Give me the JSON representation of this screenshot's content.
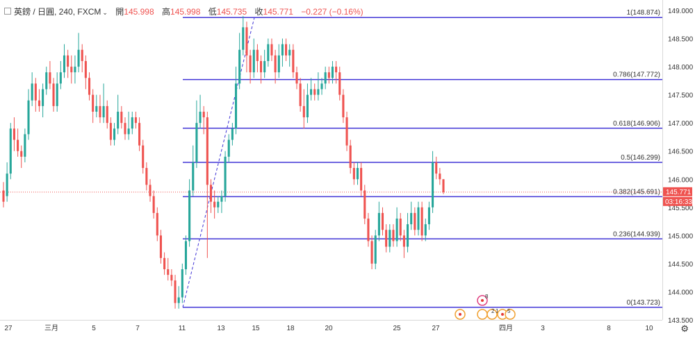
{
  "header": {
    "symbol": "英鎊 / 日圓, 240, FXCM",
    "open_label": "開",
    "open": "145.998",
    "high_label": "高",
    "high": "145.998",
    "low_label": "低",
    "low": "145.735",
    "close_label": "收",
    "close": "145.771",
    "change": "−0.227 (−0.16%)"
  },
  "price_tag": {
    "value": "145.771",
    "countdown": "03:16:33",
    "color": "#ef5350"
  },
  "colors": {
    "up": "#26a69a",
    "down": "#ef5350",
    "fib": "#3f33d6",
    "trend": "#3f33d6",
    "axis_text": "#333333"
  },
  "chart_data": {
    "type": "candlestick",
    "title": "",
    "xlabel": "",
    "ylabel": "",
    "ylim": [
      143.5,
      149.1
    ],
    "y_ticks": [
      "149.000",
      "148.500",
      "148.000",
      "147.500",
      "147.000",
      "146.500",
      "146.000",
      "145.500",
      "145.000",
      "144.500",
      "144.000",
      "143.500"
    ],
    "x_ticks": [
      "27",
      "三月",
      "5",
      "7",
      "11",
      "13",
      "15",
      "18",
      "20",
      "25",
      "27",
      "四月",
      "3",
      "8",
      "10"
    ],
    "grid": false,
    "candles": [
      [
        145.8,
        145.6,
        145.95,
        145.5
      ],
      [
        145.7,
        146.1,
        146.3,
        145.6
      ],
      [
        146.1,
        146.9,
        147.0,
        146.0
      ],
      [
        146.9,
        146.7,
        147.1,
        146.5
      ],
      [
        146.7,
        146.5,
        146.9,
        146.4
      ],
      [
        146.5,
        146.4,
        146.6,
        146.2
      ],
      [
        146.4,
        146.8,
        146.9,
        146.3
      ],
      [
        146.8,
        147.4,
        147.6,
        146.7
      ],
      [
        147.4,
        147.7,
        147.9,
        147.3
      ],
      [
        147.7,
        147.4,
        147.8,
        147.2
      ],
      [
        147.4,
        147.3,
        147.6,
        147.2
      ],
      [
        147.3,
        147.6,
        147.7,
        147.1
      ],
      [
        147.6,
        147.9,
        148.0,
        147.5
      ],
      [
        147.9,
        147.7,
        148.1,
        147.6
      ],
      [
        147.7,
        147.3,
        147.8,
        147.2
      ],
      [
        147.3,
        147.7,
        147.9,
        147.2
      ],
      [
        147.7,
        147.9,
        148.1,
        147.6
      ],
      [
        147.9,
        148.2,
        148.4,
        147.8
      ],
      [
        148.2,
        148.0,
        148.3,
        147.8
      ],
      [
        148.0,
        147.9,
        148.2,
        147.7
      ],
      [
        147.9,
        148.0,
        148.2,
        147.7
      ],
      [
        148.0,
        148.3,
        148.6,
        147.9
      ],
      [
        148.3,
        148.1,
        148.4,
        147.9
      ],
      [
        148.1,
        147.8,
        148.2,
        147.6
      ],
      [
        147.8,
        147.5,
        147.9,
        147.4
      ],
      [
        147.5,
        147.2,
        147.6,
        147.0
      ],
      [
        147.2,
        147.3,
        147.5,
        147.1
      ],
      [
        147.3,
        147.1,
        147.5,
        147.0
      ],
      [
        147.1,
        147.3,
        147.7,
        147.0
      ],
      [
        147.3,
        147.0,
        147.4,
        146.9
      ],
      [
        147.0,
        146.7,
        147.1,
        146.6
      ],
      [
        146.7,
        146.9,
        147.0,
        146.6
      ],
      [
        146.9,
        147.2,
        147.5,
        146.8
      ],
      [
        147.2,
        147.0,
        147.3,
        146.9
      ],
      [
        147.0,
        146.8,
        147.1,
        146.7
      ],
      [
        146.8,
        146.9,
        147.2,
        146.7
      ],
      [
        146.9,
        147.1,
        147.2,
        146.8
      ],
      [
        147.1,
        147.0,
        147.2,
        146.9
      ],
      [
        147.0,
        146.6,
        147.1,
        146.5
      ],
      [
        146.6,
        146.2,
        146.7,
        146.1
      ],
      [
        146.2,
        145.9,
        146.3,
        145.8
      ],
      [
        145.9,
        145.7,
        146.0,
        145.6
      ],
      [
        145.7,
        145.4,
        145.8,
        145.3
      ],
      [
        145.4,
        145.0,
        145.5,
        144.9
      ],
      [
        145.0,
        144.6,
        145.1,
        144.5
      ],
      [
        144.6,
        144.4,
        144.7,
        144.3
      ],
      [
        144.4,
        144.3,
        144.6,
        144.2
      ],
      [
        144.3,
        144.2,
        144.4,
        144.1
      ],
      [
        144.2,
        143.8,
        144.3,
        143.7
      ],
      [
        143.8,
        143.9,
        144.1,
        143.7
      ],
      [
        143.9,
        144.4,
        144.5,
        143.8
      ],
      [
        144.4,
        144.9,
        145.0,
        144.3
      ],
      [
        144.9,
        145.8,
        146.0,
        144.8
      ],
      [
        145.8,
        146.3,
        146.6,
        145.7
      ],
      [
        146.3,
        147.0,
        147.4,
        146.2
      ],
      [
        147.0,
        147.2,
        147.5,
        146.9
      ],
      [
        147.2,
        147.1,
        147.3,
        146.8
      ],
      [
        147.1,
        145.9,
        147.2,
        144.6
      ],
      [
        145.9,
        145.6,
        146.0,
        145.4
      ],
      [
        145.6,
        145.5,
        145.8,
        145.3
      ],
      [
        145.5,
        145.6,
        145.7,
        145.4
      ],
      [
        145.6,
        145.7,
        145.8,
        145.4
      ],
      [
        145.7,
        146.4,
        146.5,
        145.6
      ],
      [
        146.4,
        146.7,
        146.8,
        146.3
      ],
      [
        146.7,
        146.9,
        147.0,
        146.6
      ],
      [
        146.9,
        147.7,
        148.0,
        146.8
      ],
      [
        147.7,
        148.3,
        148.6,
        147.6
      ],
      [
        148.3,
        148.7,
        148.9,
        148.2
      ],
      [
        148.7,
        148.2,
        148.8,
        147.9
      ],
      [
        148.2,
        147.9,
        148.3,
        147.7
      ],
      [
        147.9,
        148.3,
        148.5,
        147.8
      ],
      [
        148.3,
        148.1,
        148.4,
        147.9
      ],
      [
        148.1,
        147.9,
        148.2,
        147.7
      ],
      [
        147.9,
        148.1,
        148.3,
        147.8
      ],
      [
        148.1,
        148.4,
        148.5,
        148.0
      ],
      [
        148.4,
        148.2,
        148.5,
        148.1
      ],
      [
        148.2,
        147.9,
        148.3,
        147.7
      ],
      [
        147.9,
        148.2,
        148.4,
        147.8
      ],
      [
        148.2,
        148.4,
        148.5,
        148.0
      ],
      [
        148.4,
        148.2,
        148.5,
        148.1
      ],
      [
        148.2,
        148.3,
        148.4,
        148.0
      ],
      [
        148.3,
        147.9,
        148.4,
        147.8
      ],
      [
        147.9,
        147.7,
        148.0,
        147.6
      ],
      [
        147.7,
        147.3,
        147.8,
        147.2
      ],
      [
        147.3,
        147.1,
        147.6,
        146.9
      ],
      [
        147.1,
        147.5,
        147.7,
        147.0
      ],
      [
        147.5,
        147.6,
        147.8,
        147.4
      ],
      [
        147.6,
        147.5,
        147.7,
        147.4
      ],
      [
        147.5,
        147.6,
        147.9,
        147.4
      ],
      [
        147.6,
        147.7,
        147.8,
        147.5
      ],
      [
        147.7,
        147.9,
        148.0,
        147.6
      ],
      [
        147.9,
        147.8,
        148.0,
        147.7
      ],
      [
        147.8,
        148.0,
        148.1,
        147.7
      ],
      [
        148.0,
        147.9,
        148.1,
        147.7
      ],
      [
        147.9,
        147.5,
        148.0,
        147.4
      ],
      [
        147.5,
        147.1,
        147.6,
        147.0
      ],
      [
        147.1,
        146.6,
        147.2,
        146.5
      ],
      [
        146.6,
        146.2,
        146.7,
        146.1
      ],
      [
        146.2,
        146.0,
        146.3,
        145.9
      ],
      [
        146.0,
        146.2,
        146.3,
        145.9
      ],
      [
        146.2,
        145.8,
        146.3,
        145.7
      ],
      [
        145.8,
        145.3,
        145.9,
        145.2
      ],
      [
        145.3,
        144.9,
        145.4,
        144.8
      ],
      [
        144.9,
        144.5,
        145.0,
        144.4
      ],
      [
        144.5,
        145.0,
        145.1,
        144.4
      ],
      [
        145.0,
        145.4,
        145.6,
        144.9
      ],
      [
        145.4,
        145.1,
        145.5,
        145.0
      ],
      [
        145.1,
        144.8,
        145.2,
        144.7
      ],
      [
        144.8,
        145.1,
        145.2,
        144.7
      ],
      [
        145.1,
        144.9,
        145.2,
        144.8
      ],
      [
        144.9,
        145.3,
        145.5,
        144.8
      ],
      [
        145.3,
        145.0,
        145.4,
        144.9
      ],
      [
        145.0,
        144.8,
        145.1,
        144.6
      ],
      [
        144.8,
        145.2,
        145.4,
        144.7
      ],
      [
        145.2,
        145.4,
        145.6,
        145.1
      ],
      [
        145.4,
        145.1,
        145.5,
        145.0
      ],
      [
        145.1,
        145.5,
        145.6,
        145.0
      ],
      [
        145.5,
        145.0,
        145.6,
        144.9
      ],
      [
        145.0,
        145.2,
        145.3,
        144.9
      ],
      [
        145.2,
        145.5,
        145.6,
        145.1
      ],
      [
        145.5,
        146.3,
        146.5,
        145.4
      ],
      [
        146.3,
        146.1,
        146.4,
        146.0
      ],
      [
        146.1,
        146.0,
        146.2,
        145.9
      ],
      [
        146.0,
        145.771,
        146.0,
        145.735
      ]
    ],
    "fib_levels": [
      {
        "ratio": "1",
        "label": "1(148.874)",
        "value": 148.874
      },
      {
        "ratio": "0.786",
        "label": "0.786(147.772)",
        "value": 147.772
      },
      {
        "ratio": "0.618",
        "label": "0.618(146.906)",
        "value": 146.906
      },
      {
        "ratio": "0.5",
        "label": "0.5(146.299)",
        "value": 146.299
      },
      {
        "ratio": "0.382",
        "label": "0.382(145.691)",
        "value": 145.691
      },
      {
        "ratio": "0.236",
        "label": "0.236(144.939)",
        "value": 144.939
      },
      {
        "ratio": "0",
        "label": "0(143.723)",
        "value": 143.723
      }
    ],
    "last_price": 145.771,
    "event_labels": [
      "8",
      "2",
      "1",
      "5"
    ]
  }
}
